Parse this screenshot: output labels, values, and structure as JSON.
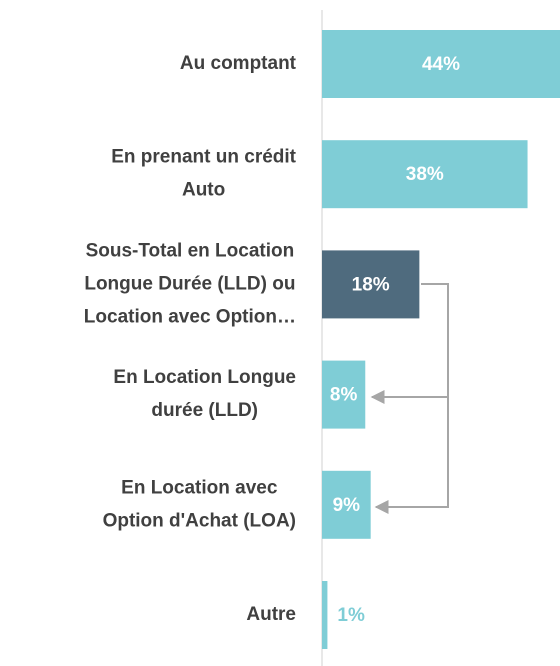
{
  "chart_data": {
    "type": "barh",
    "categories": [
      [
        "Au comptant"
      ],
      [
        "En prenant un crédit",
        "Auto"
      ],
      [
        "Sous-Total en Location",
        "Longue Durée (LLD) ou",
        "Location avec Option…"
      ],
      [
        "En Location Longue",
        "durée (LLD)"
      ],
      [
        "En Location avec",
        "Option d'Achat (LOA)"
      ],
      [
        "Autre"
      ]
    ],
    "values": [
      44,
      38,
      18,
      8,
      9,
      1
    ],
    "value_labels": [
      "44%",
      "38%",
      "18%",
      "8%",
      "9%",
      "1%"
    ],
    "colors": [
      "#7fcdd6",
      "#7fcdd6",
      "#4f6b7e",
      "#7fcdd6",
      "#7fcdd6",
      "#7fcdd6"
    ],
    "xlim": [
      0,
      44
    ]
  }
}
